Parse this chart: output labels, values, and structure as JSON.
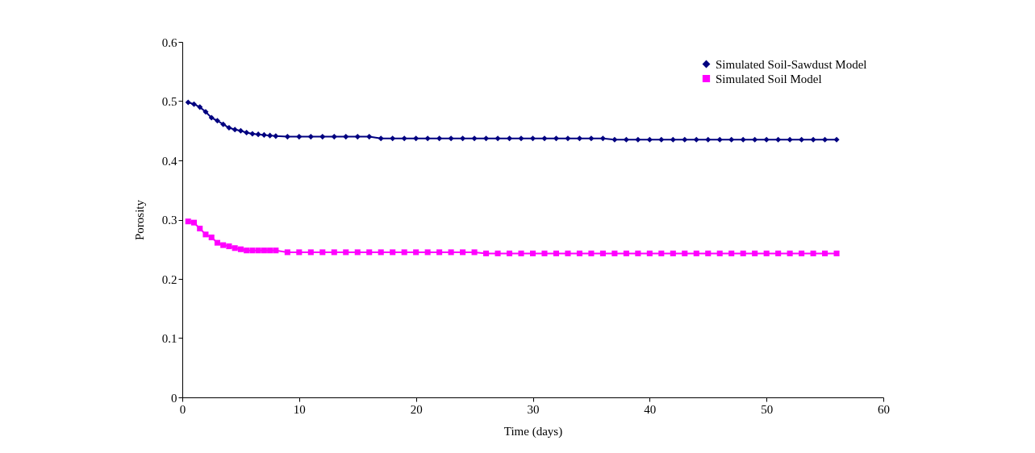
{
  "chart_data": {
    "type": "line",
    "xlabel": "Time (days)",
    "ylabel": "Porosity",
    "x": [
      0.5,
      1,
      1.5,
      2,
      2.5,
      3,
      3.5,
      4,
      4.5,
      5,
      5.5,
      6,
      6.5,
      7,
      7.5,
      8,
      9,
      10,
      11,
      12,
      13,
      14,
      15,
      16,
      17,
      18,
      19,
      20,
      21,
      22,
      23,
      24,
      25,
      26,
      27,
      28,
      29,
      30,
      31,
      32,
      33,
      34,
      35,
      36,
      37,
      38,
      39,
      40,
      41,
      42,
      43,
      44,
      45,
      46,
      47,
      48,
      49,
      50,
      51,
      52,
      53,
      54,
      55,
      56
    ],
    "series": [
      {
        "name": "Simulated Soil-Sawdust Model",
        "color": "#000080",
        "marker": "diamond",
        "values": [
          0.498,
          0.495,
          0.49,
          0.482,
          0.472,
          0.467,
          0.461,
          0.455,
          0.452,
          0.45,
          0.447,
          0.445,
          0.444,
          0.443,
          0.442,
          0.441,
          0.44,
          0.44,
          0.44,
          0.44,
          0.44,
          0.44,
          0.44,
          0.44,
          0.437,
          0.437,
          0.437,
          0.437,
          0.437,
          0.437,
          0.437,
          0.437,
          0.437,
          0.437,
          0.437,
          0.437,
          0.437,
          0.437,
          0.437,
          0.437,
          0.437,
          0.437,
          0.437,
          0.437,
          0.435,
          0.435,
          0.435,
          0.435,
          0.435,
          0.435,
          0.435,
          0.435,
          0.435,
          0.435,
          0.435,
          0.435,
          0.435,
          0.435,
          0.435,
          0.435,
          0.435,
          0.435,
          0.435,
          0.435
        ]
      },
      {
        "name": "Simulated Soil Model",
        "color": "#ff00ff",
        "marker": "square",
        "values": [
          0.297,
          0.295,
          0.285,
          0.275,
          0.27,
          0.261,
          0.257,
          0.255,
          0.252,
          0.25,
          0.248,
          0.248,
          0.248,
          0.248,
          0.248,
          0.248,
          0.245,
          0.245,
          0.245,
          0.245,
          0.245,
          0.245,
          0.245,
          0.245,
          0.245,
          0.245,
          0.245,
          0.245,
          0.245,
          0.245,
          0.245,
          0.245,
          0.245,
          0.243,
          0.243,
          0.243,
          0.243,
          0.243,
          0.243,
          0.243,
          0.243,
          0.243,
          0.243,
          0.243,
          0.243,
          0.243,
          0.243,
          0.243,
          0.243,
          0.243,
          0.243,
          0.243,
          0.243,
          0.243,
          0.243,
          0.243,
          0.243,
          0.243,
          0.243,
          0.243,
          0.243,
          0.243,
          0.243,
          0.243
        ]
      }
    ],
    "xlim": [
      0,
      60
    ],
    "xticks": [
      0,
      10,
      20,
      30,
      40,
      50,
      60
    ],
    "ylim": [
      0,
      0.6
    ],
    "yticks": [
      0,
      0.1,
      0.2,
      0.3,
      0.4,
      0.5,
      0.6
    ],
    "grid": false,
    "legend": "top right",
    "line_style": "solid"
  }
}
